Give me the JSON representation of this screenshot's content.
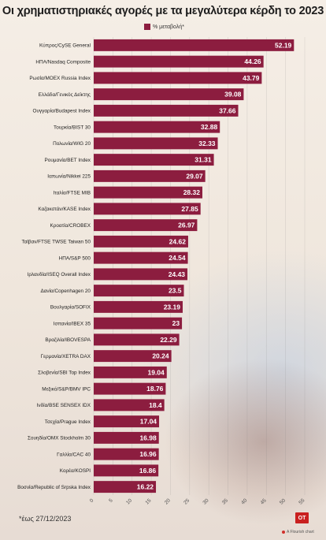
{
  "title": "Οι χρηματιστηριακές αγορές με τα μεγαλύτερα κέρδη το 2023",
  "legend_label": "% μεταβολή*",
  "footnote": "*έως 27/12/2023",
  "logo_text": "OT",
  "credit": "A Flourish chart",
  "colors": {
    "bar": "#8c1d3f",
    "background": "#f3ece4"
  },
  "chart_data": {
    "type": "bar",
    "orientation": "horizontal",
    "categories": [
      "Κύπρος/CySE General",
      "ΗΠΑ/Nasdaq Composite",
      "Ρωσία/MOEX Russia Index",
      "Ελλάδα/Γενικός Δείκτης",
      "Ουγγαρία/Budapest Index",
      "Τουρκία/BIST 30",
      "Πολωνία/WIG 20",
      "Ρουμανία/BET Index",
      "Ιαπωνία/Nikkei 225",
      "Ιταλία/FTSE MIB",
      "Καζακστάν/KASE Index",
      "Κροατία/CROBEX",
      "Ταϊβαν/FTSE TWSE Taiwan 50",
      "ΗΠΑ/S&P 500",
      "Ιρλανδία/ISEQ Overall Index",
      "Δανία/Copenhagen 20",
      "Βουλγαρία/SOFIX",
      "Ισπανία/IBEX 35",
      "Βραζιλία/IBOVESPA",
      "Γερμανία/XETRA DAX",
      "Σλοβενία/SBI Top Index",
      "Μεξικό/S&P/BMV IPC",
      "Ινδία/BSE SENSEX IDX",
      "Τσεχία/Prague Index",
      "Σουηδία/OMX Stockholm 30",
      "Γαλλία/CAC 40",
      "Κορέα/KOSPI",
      "Βοσνία/Republic of Srpska Index"
    ],
    "values": [
      52.19,
      44.26,
      43.79,
      39.08,
      37.66,
      32.88,
      32.33,
      31.31,
      29.07,
      28.32,
      27.85,
      26.97,
      24.62,
      24.54,
      24.43,
      23.5,
      23.19,
      23,
      22.29,
      20.24,
      19.04,
      18.76,
      18.4,
      17.04,
      16.98,
      16.96,
      16.86,
      16.22
    ],
    "value_labels": [
      "52.19",
      "44.26",
      "43.79",
      "39.08",
      "37.66",
      "32.88",
      "32.33",
      "31.31",
      "29.07",
      "28.32",
      "27.85",
      "26.97",
      "24.62",
      "24.54",
      "24.43",
      "23.5",
      "23.19",
      "23",
      "22.29",
      "20.24",
      "19.04",
      "18.76",
      "18.4",
      "17.04",
      "16.98",
      "16.96",
      "16.86",
      "16.22"
    ],
    "xlim": [
      0,
      55
    ],
    "xticks": [
      0,
      5,
      10,
      15,
      20,
      25,
      30,
      35,
      40,
      45,
      50,
      55
    ],
    "grid": true,
    "legend_position": "top"
  }
}
